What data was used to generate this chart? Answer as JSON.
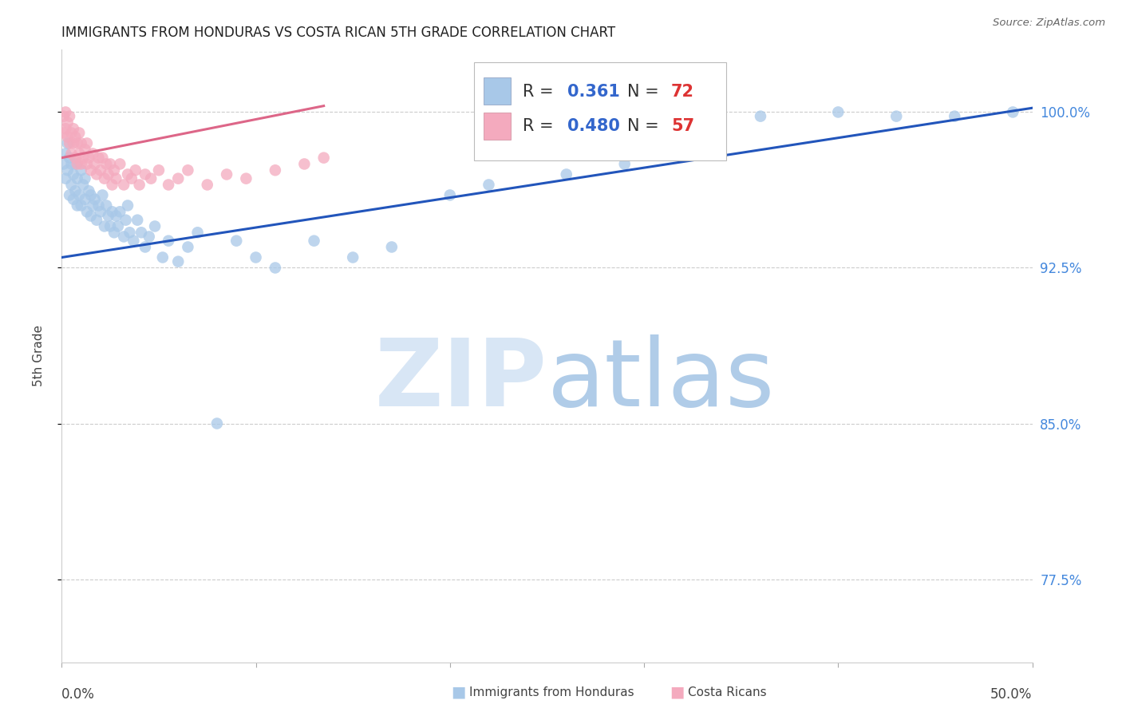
{
  "title": "IMMIGRANTS FROM HONDURAS VS COSTA RICAN 5TH GRADE CORRELATION CHART",
  "source": "Source: ZipAtlas.com",
  "ylabel": "5th Grade",
  "yticks": [
    0.775,
    0.85,
    0.925,
    1.0
  ],
  "ytick_labels": [
    "77.5%",
    "85.0%",
    "92.5%",
    "100.0%"
  ],
  "xlim": [
    0.0,
    0.5
  ],
  "ylim": [
    0.735,
    1.03
  ],
  "legend_blue_R": "0.361",
  "legend_blue_N": "72",
  "legend_pink_R": "0.480",
  "legend_pink_N": "57",
  "blue_color": "#a8c8e8",
  "pink_color": "#f4aabe",
  "blue_line_color": "#2255bb",
  "pink_line_color": "#dd6688",
  "blue_line_x0": 0.0,
  "blue_line_y0": 0.93,
  "blue_line_x1": 0.5,
  "blue_line_y1": 1.002,
  "pink_line_x0": 0.0,
  "pink_line_y0": 0.978,
  "pink_line_x1": 0.135,
  "pink_line_y1": 1.003,
  "blue_scatter_x": [
    0.001,
    0.002,
    0.002,
    0.003,
    0.003,
    0.004,
    0.004,
    0.005,
    0.005,
    0.006,
    0.006,
    0.007,
    0.007,
    0.008,
    0.008,
    0.009,
    0.01,
    0.01,
    0.011,
    0.012,
    0.012,
    0.013,
    0.014,
    0.015,
    0.015,
    0.016,
    0.017,
    0.018,
    0.019,
    0.02,
    0.021,
    0.022,
    0.023,
    0.024,
    0.025,
    0.026,
    0.027,
    0.028,
    0.029,
    0.03,
    0.032,
    0.033,
    0.034,
    0.035,
    0.037,
    0.039,
    0.041,
    0.043,
    0.045,
    0.048,
    0.052,
    0.055,
    0.06,
    0.065,
    0.07,
    0.08,
    0.09,
    0.1,
    0.11,
    0.13,
    0.15,
    0.17,
    0.2,
    0.22,
    0.26,
    0.29,
    0.32,
    0.36,
    0.4,
    0.43,
    0.46,
    0.49
  ],
  "blue_scatter_y": [
    0.975,
    0.968,
    0.98,
    0.972,
    0.985,
    0.96,
    0.978,
    0.965,
    0.975,
    0.958,
    0.97,
    0.962,
    0.975,
    0.955,
    0.968,
    0.96,
    0.972,
    0.955,
    0.965,
    0.958,
    0.968,
    0.952,
    0.962,
    0.95,
    0.96,
    0.955,
    0.958,
    0.948,
    0.955,
    0.952,
    0.96,
    0.945,
    0.955,
    0.95,
    0.945,
    0.952,
    0.942,
    0.95,
    0.945,
    0.952,
    0.94,
    0.948,
    0.955,
    0.942,
    0.938,
    0.948,
    0.942,
    0.935,
    0.94,
    0.945,
    0.93,
    0.938,
    0.928,
    0.935,
    0.942,
    0.85,
    0.938,
    0.93,
    0.925,
    0.938,
    0.93,
    0.935,
    0.96,
    0.965,
    0.97,
    0.975,
    0.985,
    0.998,
    1.0,
    0.998,
    0.998,
    1.0
  ],
  "pink_scatter_x": [
    0.001,
    0.001,
    0.002,
    0.002,
    0.003,
    0.003,
    0.004,
    0.004,
    0.005,
    0.005,
    0.006,
    0.006,
    0.007,
    0.007,
    0.008,
    0.008,
    0.009,
    0.009,
    0.01,
    0.01,
    0.011,
    0.012,
    0.013,
    0.013,
    0.014,
    0.015,
    0.016,
    0.017,
    0.018,
    0.019,
    0.02,
    0.021,
    0.022,
    0.023,
    0.024,
    0.025,
    0.026,
    0.027,
    0.028,
    0.03,
    0.032,
    0.034,
    0.036,
    0.038,
    0.04,
    0.043,
    0.046,
    0.05,
    0.055,
    0.06,
    0.065,
    0.075,
    0.085,
    0.095,
    0.11,
    0.125,
    0.135
  ],
  "pink_scatter_y": [
    0.99,
    0.998,
    0.992,
    1.0,
    0.988,
    0.995,
    0.985,
    0.998,
    0.98,
    0.99,
    0.985,
    0.992,
    0.978,
    0.988,
    0.975,
    0.985,
    0.98,
    0.99,
    0.975,
    0.985,
    0.978,
    0.982,
    0.975,
    0.985,
    0.978,
    0.972,
    0.98,
    0.975,
    0.97,
    0.978,
    0.972,
    0.978,
    0.968,
    0.975,
    0.97,
    0.975,
    0.965,
    0.972,
    0.968,
    0.975,
    0.965,
    0.97,
    0.968,
    0.972,
    0.965,
    0.97,
    0.968,
    0.972,
    0.965,
    0.968,
    0.972,
    0.965,
    0.97,
    0.968,
    0.972,
    0.975,
    0.978
  ]
}
